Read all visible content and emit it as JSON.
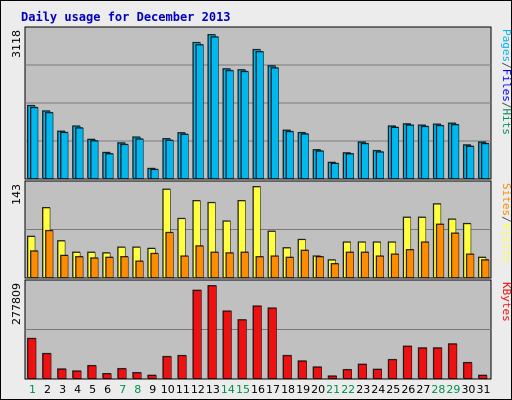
{
  "colors": {
    "background": "#ececec",
    "panel": "#c0c0c0",
    "grid": "#7a7a7a",
    "title": "#0000c0",
    "pages": "#00b7ee",
    "hits": "#0f8aa6",
    "sites": "#ffff40",
    "visits": "#ff8c00",
    "kbytes": "#ee1111",
    "weekday": "#000000",
    "weekend": "#00904a"
  },
  "chart_data": {
    "type": "bar",
    "title": "Daily usage for December 2013",
    "categories": [
      "1",
      "2",
      "3",
      "4",
      "5",
      "6",
      "7",
      "8",
      "9",
      "10",
      "11",
      "12",
      "13",
      "14",
      "15",
      "16",
      "17",
      "18",
      "19",
      "20",
      "21",
      "22",
      "23",
      "24",
      "25",
      "26",
      "27",
      "28",
      "29",
      "30",
      "31"
    ],
    "weekend_days": [
      "1",
      "7",
      "8",
      "14",
      "15",
      "21",
      "22",
      "28",
      "29"
    ],
    "panels": [
      {
        "max_label": "3118",
        "ymax": 3118,
        "legend": [
          {
            "text": "Pages",
            "color": "#00b7ee"
          },
          {
            "text": "/",
            "color": "#555555"
          },
          {
            "text": "Files",
            "color": "#0000ff"
          },
          {
            "text": "/",
            "color": "#555555"
          },
          {
            "text": "Hits",
            "color": "#00905f"
          }
        ],
        "series": [
          {
            "name": "Hits",
            "values": [
              1583,
              1467,
              1028,
              1140,
              851,
              568,
              776,
              902,
              221,
              866,
              995,
              2947,
              3118,
              2379,
              2358,
              2795,
              2443,
              1050,
              998,
              627,
              353,
              560,
              792,
              608,
              1141,
              1188,
              1160,
              1181,
              1202,
              732,
              791
            ]
          },
          {
            "name": "Files",
            "values": [
              1540,
              1430,
              1000,
              1100,
              820,
              540,
              740,
              860,
              200,
              830,
              960,
              2900,
              3070,
              2340,
              2320,
              2750,
              2400,
              1020,
              970,
              600,
              330,
              540,
              760,
              580,
              1110,
              1160,
              1130,
              1150,
              1170,
              700,
              760
            ]
          }
        ]
      },
      {
        "max_label": "143",
        "ymax": 143,
        "legend": [
          {
            "text": "Sites",
            "color": "#ff8c00"
          },
          {
            "text": "/",
            "color": "#555555"
          },
          {
            "text": "Visits",
            "color": "#ffff40"
          }
        ],
        "series": [
          {
            "name": "Visits",
            "values": [
              65,
              110,
              58,
              40,
              40,
              39,
              48,
              48,
              46,
              139,
              93,
              121,
              118,
              89,
              121,
              143,
              73,
              47,
              60,
              34,
              28,
              56,
              56,
              56,
              56,
              95,
              95,
              116,
              92,
              85,
              32
            ]
          },
          {
            "name": "Sites",
            "values": [
              42,
              74,
              35,
              33,
              31,
              32,
              33,
              26,
              38,
              71,
              34,
              50,
              40,
              39,
              40,
              33,
              34,
              32,
              43,
              33,
              22,
              40,
              40,
              34,
              37,
              44,
              56,
              84,
              70,
              37,
              28
            ]
          }
        ]
      },
      {
        "max_label": "277809",
        "ymax": 277809,
        "legend": [
          {
            "text": "KBytes",
            "color": "#ee1111"
          }
        ],
        "series": [
          {
            "name": "KBytes",
            "values": [
              120000,
              75000,
              29000,
              23000,
              39000,
              15000,
              30000,
              18000,
              10000,
              66000,
              69000,
              264000,
              277809,
              202000,
              176000,
              217000,
              211000,
              69000,
              53000,
              35000,
              8000,
              27000,
              43000,
              28000,
              57000,
              97000,
              92000,
              92000,
              104000,
              48000,
              10000
            ]
          }
        ]
      }
    ]
  }
}
